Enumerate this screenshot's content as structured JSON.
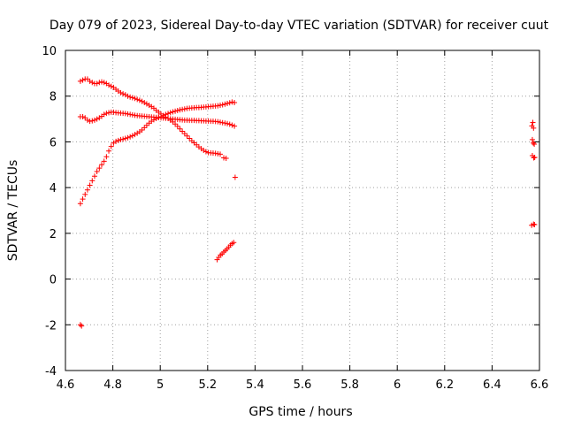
{
  "chart_data": {
    "type": "scatter",
    "title": "Day 079 of 2023, Sidereal Day-to-day VTEC variation (SDTVAR) for receiver cuut",
    "xlabel": "GPS time / hours",
    "ylabel": "SDTVAR / TECUs",
    "xlim": [
      4.6,
      6.6
    ],
    "ylim": [
      -4,
      10
    ],
    "xticks": [
      4.6,
      4.8,
      5.0,
      5.2,
      5.4,
      5.6,
      5.8,
      6.0,
      6.2,
      6.4,
      6.6
    ],
    "xtick_labels": [
      "4.6",
      "4.8",
      "5",
      "5.2",
      "5.4",
      "5.6",
      "5.8",
      "6",
      "6.2",
      "6.4",
      "6.6"
    ],
    "yticks": [
      -4,
      -2,
      0,
      2,
      4,
      6,
      8,
      10
    ],
    "ytick_labels": [
      "-4",
      "-2",
      "0",
      "2",
      "4",
      "6",
      "8",
      "10"
    ],
    "grid": true,
    "marker": "+",
    "marker_color": "#ff0000",
    "series": [
      {
        "name": "arc-high-descending",
        "points": [
          [
            4.663,
            8.65
          ],
          [
            4.673,
            8.7
          ],
          [
            4.683,
            8.75
          ],
          [
            4.693,
            8.75
          ],
          [
            4.703,
            8.65
          ],
          [
            4.713,
            8.6
          ],
          [
            4.723,
            8.55
          ],
          [
            4.733,
            8.55
          ],
          [
            4.743,
            8.6
          ],
          [
            4.753,
            8.62
          ],
          [
            4.763,
            8.6
          ],
          [
            4.773,
            8.55
          ],
          [
            4.783,
            8.48
          ],
          [
            4.793,
            8.43
          ],
          [
            4.803,
            8.38
          ],
          [
            4.813,
            8.3
          ],
          [
            4.823,
            8.22
          ],
          [
            4.833,
            8.15
          ],
          [
            4.843,
            8.1
          ],
          [
            4.853,
            8.06
          ],
          [
            4.863,
            8.0
          ],
          [
            4.873,
            7.96
          ],
          [
            4.883,
            7.93
          ],
          [
            4.893,
            7.9
          ],
          [
            4.903,
            7.86
          ],
          [
            4.913,
            7.82
          ],
          [
            4.923,
            7.77
          ],
          [
            4.933,
            7.72
          ],
          [
            4.943,
            7.66
          ],
          [
            4.953,
            7.6
          ],
          [
            4.963,
            7.54
          ],
          [
            4.973,
            7.47
          ],
          [
            4.983,
            7.38
          ],
          [
            4.993,
            7.3
          ],
          [
            5.003,
            7.22
          ],
          [
            5.013,
            7.15
          ],
          [
            5.023,
            7.08
          ],
          [
            5.033,
            7.02
          ],
          [
            5.043,
            6.95
          ],
          [
            5.053,
            6.87
          ],
          [
            5.063,
            6.78
          ],
          [
            5.073,
            6.68
          ],
          [
            5.083,
            6.57
          ],
          [
            5.093,
            6.46
          ],
          [
            5.103,
            6.36
          ],
          [
            5.113,
            6.26
          ],
          [
            5.123,
            6.15
          ],
          [
            5.133,
            6.05
          ],
          [
            5.143,
            5.96
          ],
          [
            5.153,
            5.87
          ],
          [
            5.163,
            5.78
          ],
          [
            5.173,
            5.7
          ],
          [
            5.183,
            5.63
          ],
          [
            5.193,
            5.57
          ],
          [
            5.203,
            5.53
          ],
          [
            5.213,
            5.52
          ],
          [
            5.223,
            5.51
          ],
          [
            5.233,
            5.5
          ],
          [
            5.243,
            5.48
          ],
          [
            5.253,
            5.46
          ],
          [
            5.268,
            5.3
          ],
          [
            5.278,
            5.28
          ]
        ]
      },
      {
        "name": "arc-mid-flat",
        "points": [
          [
            4.663,
            7.1
          ],
          [
            4.673,
            7.1
          ],
          [
            4.683,
            7.05
          ],
          [
            4.693,
            6.95
          ],
          [
            4.703,
            6.9
          ],
          [
            4.713,
            6.92
          ],
          [
            4.723,
            6.95
          ],
          [
            4.733,
            7.0
          ],
          [
            4.743,
            7.05
          ],
          [
            4.753,
            7.12
          ],
          [
            4.763,
            7.2
          ],
          [
            4.773,
            7.25
          ],
          [
            4.783,
            7.28
          ],
          [
            4.793,
            7.3
          ],
          [
            4.803,
            7.3
          ],
          [
            4.813,
            7.28
          ],
          [
            4.823,
            7.27
          ],
          [
            4.833,
            7.26
          ],
          [
            4.843,
            7.25
          ],
          [
            4.853,
            7.24
          ],
          [
            4.863,
            7.22
          ],
          [
            4.873,
            7.2
          ],
          [
            4.883,
            7.18
          ],
          [
            4.893,
            7.16
          ],
          [
            4.903,
            7.15
          ],
          [
            4.913,
            7.14
          ],
          [
            4.923,
            7.13
          ],
          [
            4.933,
            7.12
          ],
          [
            4.943,
            7.11
          ],
          [
            4.953,
            7.1
          ],
          [
            4.963,
            7.09
          ],
          [
            4.973,
            7.08
          ],
          [
            4.983,
            7.07
          ],
          [
            4.993,
            7.06
          ],
          [
            5.003,
            7.05
          ],
          [
            5.013,
            7.04
          ],
          [
            5.023,
            7.03
          ],
          [
            5.033,
            7.02
          ],
          [
            5.043,
            7.01
          ],
          [
            5.053,
            7.0
          ],
          [
            5.063,
            6.99
          ],
          [
            5.073,
            6.98
          ],
          [
            5.083,
            6.97
          ],
          [
            5.093,
            6.96
          ],
          [
            5.103,
            6.95
          ],
          [
            5.113,
            6.95
          ],
          [
            5.123,
            6.94
          ],
          [
            5.133,
            6.94
          ],
          [
            5.143,
            6.94
          ],
          [
            5.153,
            6.93
          ],
          [
            5.163,
            6.93
          ],
          [
            5.173,
            6.92
          ],
          [
            5.183,
            6.92
          ],
          [
            5.193,
            6.91
          ],
          [
            5.203,
            6.91
          ],
          [
            5.213,
            6.9
          ],
          [
            5.223,
            6.9
          ],
          [
            5.233,
            6.89
          ],
          [
            5.243,
            6.88
          ],
          [
            5.253,
            6.86
          ],
          [
            5.263,
            6.84
          ],
          [
            5.273,
            6.82
          ],
          [
            5.283,
            6.8
          ],
          [
            5.293,
            6.77
          ],
          [
            5.303,
            6.73
          ],
          [
            5.313,
            6.69
          ]
        ]
      },
      {
        "name": "arc-low-ascending",
        "points": [
          [
            4.663,
            3.3
          ],
          [
            4.673,
            3.5
          ],
          [
            4.683,
            3.7
          ],
          [
            4.693,
            3.9
          ],
          [
            4.703,
            4.1
          ],
          [
            4.713,
            4.3
          ],
          [
            4.723,
            4.5
          ],
          [
            4.733,
            4.7
          ],
          [
            4.743,
            4.85
          ],
          [
            4.753,
            5.0
          ],
          [
            4.763,
            5.15
          ],
          [
            4.773,
            5.35
          ],
          [
            4.783,
            5.6
          ],
          [
            4.793,
            5.8
          ],
          [
            4.803,
            5.95
          ],
          [
            4.813,
            6.02
          ],
          [
            4.823,
            6.06
          ],
          [
            4.833,
            6.1
          ],
          [
            4.843,
            6.12
          ],
          [
            4.853,
            6.15
          ],
          [
            4.863,
            6.18
          ],
          [
            4.873,
            6.22
          ],
          [
            4.883,
            6.27
          ],
          [
            4.893,
            6.32
          ],
          [
            4.903,
            6.38
          ],
          [
            4.913,
            6.44
          ],
          [
            4.923,
            6.52
          ],
          [
            4.933,
            6.62
          ],
          [
            4.943,
            6.72
          ],
          [
            4.953,
            6.82
          ],
          [
            4.963,
            6.9
          ],
          [
            4.973,
            6.97
          ],
          [
            4.983,
            7.02
          ],
          [
            4.993,
            7.06
          ],
          [
            5.003,
            7.1
          ],
          [
            5.013,
            7.15
          ],
          [
            5.023,
            7.2
          ],
          [
            5.033,
            7.24
          ],
          [
            5.043,
            7.28
          ],
          [
            5.053,
            7.31
          ],
          [
            5.063,
            7.34
          ],
          [
            5.073,
            7.37
          ],
          [
            5.083,
            7.4
          ],
          [
            5.093,
            7.42
          ],
          [
            5.103,
            7.44
          ],
          [
            5.113,
            7.46
          ],
          [
            5.123,
            7.47
          ],
          [
            5.133,
            7.48
          ],
          [
            5.143,
            7.49
          ],
          [
            5.153,
            7.5
          ],
          [
            5.163,
            7.5
          ],
          [
            5.173,
            7.51
          ],
          [
            5.183,
            7.52
          ],
          [
            5.193,
            7.53
          ],
          [
            5.203,
            7.54
          ],
          [
            5.213,
            7.55
          ],
          [
            5.223,
            7.56
          ],
          [
            5.233,
            7.57
          ],
          [
            5.243,
            7.58
          ],
          [
            5.253,
            7.6
          ],
          [
            5.263,
            7.62
          ],
          [
            5.273,
            7.65
          ],
          [
            5.283,
            7.68
          ],
          [
            5.293,
            7.71
          ],
          [
            5.303,
            7.74
          ],
          [
            5.313,
            7.72
          ]
        ]
      },
      {
        "name": "short-arc",
        "points": [
          [
            5.24,
            0.85
          ],
          [
            5.247,
            0.95
          ],
          [
            5.254,
            1.05
          ],
          [
            5.261,
            1.1
          ],
          [
            5.268,
            1.18
          ],
          [
            5.275,
            1.25
          ],
          [
            5.282,
            1.32
          ],
          [
            5.289,
            1.4
          ],
          [
            5.296,
            1.48
          ],
          [
            5.303,
            1.55
          ],
          [
            5.31,
            1.6
          ],
          [
            5.316,
            4.45
          ]
        ]
      },
      {
        "name": "isolated-low",
        "points": [
          [
            4.663,
            -2.0
          ],
          [
            4.668,
            -2.05
          ]
        ]
      },
      {
        "name": "late-cluster",
        "points": [
          [
            6.568,
            6.7
          ],
          [
            6.572,
            6.85
          ],
          [
            6.575,
            6.6
          ],
          [
            6.57,
            6.1
          ],
          [
            6.574,
            5.95
          ],
          [
            6.578,
            5.9
          ],
          [
            6.57,
            5.4
          ],
          [
            6.576,
            5.3
          ],
          [
            6.58,
            5.32
          ],
          [
            6.567,
            2.35
          ],
          [
            6.575,
            2.4
          ],
          [
            6.579,
            2.38
          ]
        ]
      }
    ]
  }
}
